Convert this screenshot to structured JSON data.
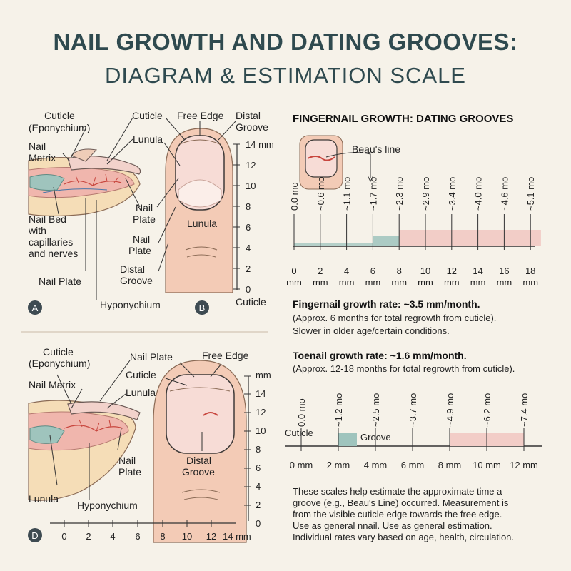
{
  "title": "NAIL GROWTH AND DATING GROOVES:",
  "subtitle": "DIAGRAM & ESTIMATION SCALE",
  "panelA": {
    "badge": "A",
    "cuticle": [
      "Cuticle",
      "(Eponychium)"
    ],
    "matrix": [
      "Nail",
      "Matrix"
    ],
    "bed": [
      "Nail Bed",
      "with",
      "capillaries",
      "and nerves"
    ],
    "plate": "Nail Plate"
  },
  "panelB": {
    "badge": "B",
    "cuticle": "Cuticle",
    "free_edge": "Free Edge",
    "distal_groove": [
      "Distal",
      "Groove"
    ],
    "lunula": "Lunula",
    "plate1": [
      "Nail",
      "Plate"
    ],
    "plate2": [
      "Nail",
      "Plate"
    ],
    "distal_groove2": [
      "Distal",
      "Groove"
    ],
    "hyponychium": "Hyponychium",
    "lunula_inner": "Lunula",
    "scale_top": "14 mm",
    "scale_ticks": [
      "12",
      "10",
      "8",
      "6",
      "4",
      "2",
      "0"
    ],
    "scale_bottom": "Cuticle"
  },
  "panelC": {
    "cuticle": [
      "Cuticle",
      "(Eponychium)"
    ],
    "matrix": "Nail Matrix",
    "plate": "Nail Plate",
    "cuticle2": "Cuticle",
    "lunula": "Lunula",
    "free_edge": "Free Edge",
    "plate2": [
      "Nail",
      "Plate"
    ],
    "distal": [
      "Distal",
      "Groove"
    ],
    "lunula_bottom": "Lunula",
    "hyponychium": "Hyponychium",
    "badge": "D",
    "scale_unit": "mm",
    "scale_ticks": [
      "14",
      "12",
      "10",
      "8",
      "6",
      "4",
      "2",
      "0"
    ],
    "bottom_ticks": [
      "0",
      "2",
      "4",
      "6",
      "8",
      "10",
      "12",
      "14 mm"
    ]
  },
  "fingernail": {
    "header": "FINGERNAIL GROWTH: DATING GROOVES",
    "beau": "Beau's line",
    "months": [
      "0.0 mo",
      "~0.6 mo",
      "~1.1 mo",
      "~1.7 mo",
      "~2.3 mo",
      "~2.9 mo",
      "~3.4 mo",
      "~4.0 mo",
      "~4.6 mo",
      "~5.1 mo"
    ],
    "mm_values": [
      "0",
      "2",
      "4",
      "6",
      "8",
      "10",
      "12",
      "14",
      "16",
      "18"
    ],
    "mm_unit": "mm",
    "rate": "Fingernail growth rate: ~3.5 mm/month.",
    "note1": "(Approx. 6 months for total regrowth from cuticle).",
    "note2": "Slower in older age/certain conditions."
  },
  "toenail": {
    "rate": "Toenail growth rate: ~1.6 mm/month.",
    "note": "(Approx. 12-18 months for total regrowth from cuticle).",
    "months": [
      "0.0 mo",
      "~1.2 mo",
      "~2.5 mo",
      "~3.7 mo",
      "~4.9 mo",
      "~6.2 mo",
      "~7.4 mo"
    ],
    "cuticle": "Cuticle",
    "groove": "Groove",
    "mm_ticks": [
      "0 mm",
      "2 mm",
      "4 mm",
      "6 mm",
      "8 mm",
      "10 mm",
      "12 mm"
    ]
  },
  "footer": [
    "These scales help estimate the approximate time a",
    "groove (e.g., Beau's Line) occurred. Measurement is",
    "from the visible cuticle edge towards the free edge.",
    "Use as general nnail. Use as general estimation.",
    "Individual rates vary based on age, health, circulation."
  ],
  "colors": {
    "teal": "#9fc4bd",
    "pink": "#f2cdc7",
    "skin": "#f3cbb6",
    "heading": "#2f4a4f"
  }
}
